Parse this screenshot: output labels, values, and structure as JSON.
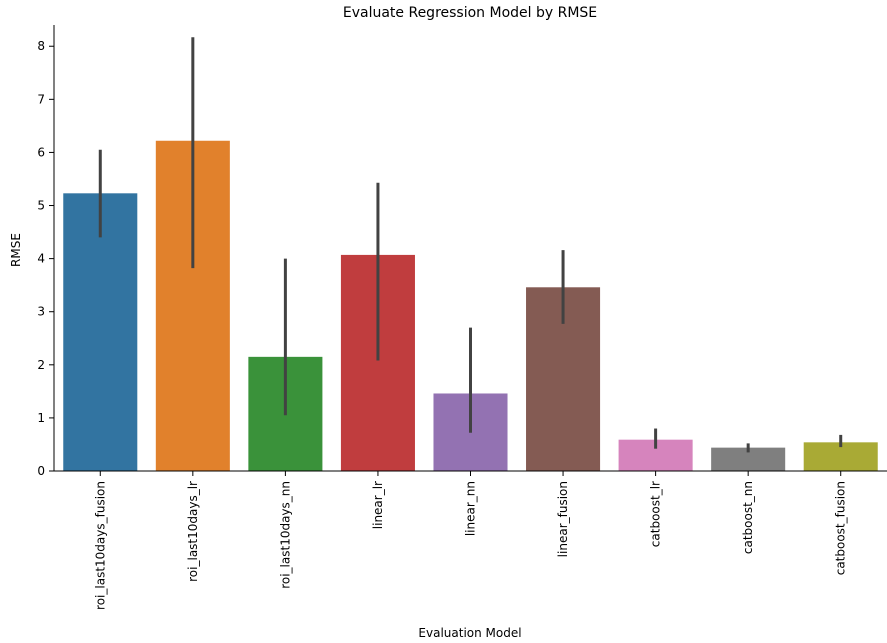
{
  "chart_data": {
    "type": "bar",
    "title": "Evaluate Regression Model by RMSE",
    "xlabel": "Evaluation Model",
    "ylabel": "RMSE",
    "ylim": [
      0,
      8.4
    ],
    "yticks": [
      0,
      1,
      2,
      3,
      4,
      5,
      6,
      7,
      8
    ],
    "grid": false,
    "categories": [
      "roi_last10days_fusion",
      "roi_last10days_lr",
      "roi_last10days_nn",
      "linear_lr",
      "linear_nn",
      "linear_fusion",
      "catboost_lr",
      "catboost_nn",
      "catboost_fusion"
    ],
    "values": [
      5.23,
      6.22,
      2.15,
      4.07,
      1.46,
      3.46,
      0.59,
      0.44,
      0.54
    ],
    "error_low": [
      4.4,
      3.82,
      1.05,
      2.08,
      0.72,
      2.77,
      0.42,
      0.35,
      0.45
    ],
    "error_high": [
      6.05,
      8.17,
      4.0,
      5.43,
      2.7,
      4.16,
      0.8,
      0.52,
      0.68
    ],
    "colors": [
      "#3274a1",
      "#e1812c",
      "#3a923a",
      "#c03d3e",
      "#9372b2",
      "#845b53",
      "#d684bd",
      "#7f7f7f",
      "#a9aa35"
    ]
  }
}
